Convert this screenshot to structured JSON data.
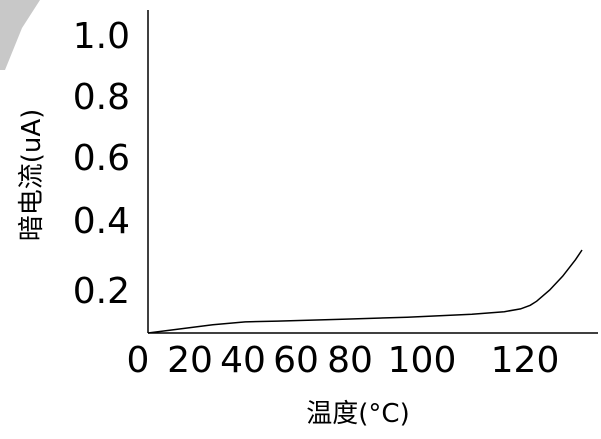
{
  "chart_data": {
    "type": "line",
    "title": "",
    "xlabel": "温度(°C)",
    "ylabel": "暗电流(uA)",
    "x_ticks": [
      "0",
      "20",
      "40",
      "60",
      "80",
      "100",
      "120"
    ],
    "y_ticks": [
      "0.2",
      "0.4",
      "0.6",
      "0.8",
      "1.0"
    ],
    "xlim": [
      0,
      140
    ],
    "ylim": [
      0,
      1.0
    ],
    "grid": false,
    "series": [
      {
        "color": "#000000",
        "points": [
          [
            0,
            0.0
          ],
          [
            10,
            0.015
          ],
          [
            20,
            0.03
          ],
          [
            30,
            0.04
          ],
          [
            40,
            0.043
          ],
          [
            60,
            0.05
          ],
          [
            80,
            0.057
          ],
          [
            100,
            0.068
          ],
          [
            110,
            0.077
          ],
          [
            115,
            0.087
          ],
          [
            118,
            0.1
          ],
          [
            120,
            0.115
          ],
          [
            124,
            0.155
          ],
          [
            128,
            0.205
          ],
          [
            132,
            0.265
          ],
          [
            134,
            0.3
          ]
        ]
      }
    ]
  },
  "decor": {
    "corner_color": "#c8c8c8"
  }
}
